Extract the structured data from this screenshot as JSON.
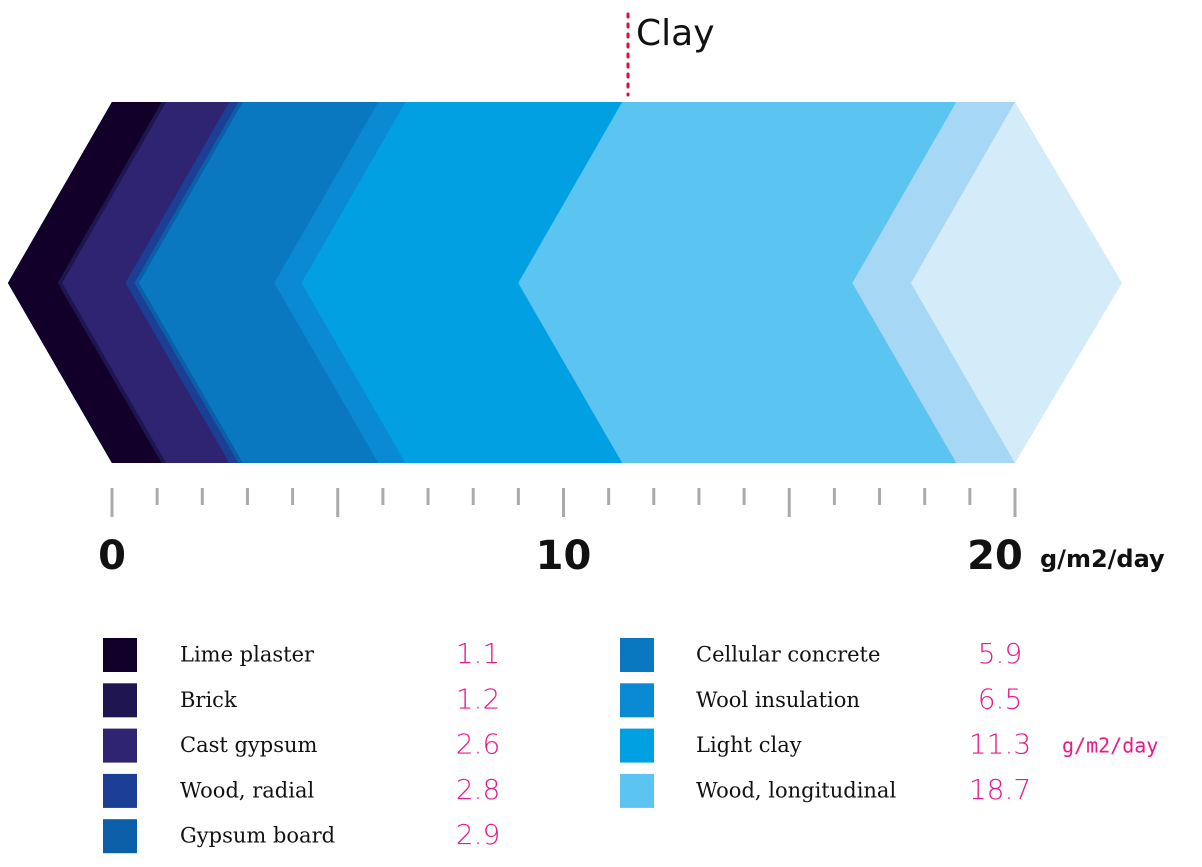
{
  "chart_data": {
    "type": "chevron",
    "annotation": "Clay",
    "unit": "g/m2/day",
    "xlim": [
      0,
      20
    ],
    "xticks": [
      0,
      10,
      20
    ],
    "xminor_ticks": [
      1,
      2,
      3,
      4,
      5,
      6,
      7,
      8,
      9,
      11,
      12,
      13,
      14,
      15,
      16,
      17,
      18,
      19
    ],
    "categories": [
      "Lime plaster",
      "Brick",
      "Cast gypsum",
      "Wood, radial",
      "Gypsum board",
      "Cellular concrete",
      "Wool insulation",
      "Light clay",
      "Wood, longitudinal"
    ],
    "values": [
      1.1,
      1.2,
      2.6,
      2.8,
      2.9,
      5.9,
      6.5,
      11.3,
      18.7
    ],
    "colors": [
      "#12002b",
      "#1f1550",
      "#2e2472",
      "#1c3f96",
      "#0a5fa8",
      "#0a78c0",
      "#0a8ad3",
      "#00a0e3",
      "#5bc4f1"
    ],
    "end_colors": [
      "#a6d8f5",
      "#d4ebfa"
    ]
  }
}
